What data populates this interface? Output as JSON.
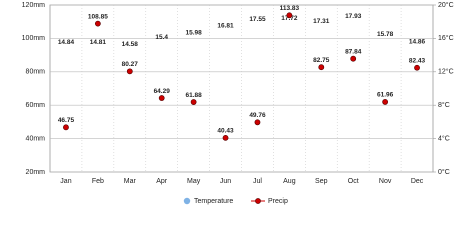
{
  "chart_data": {
    "type": "climate",
    "categories": [
      "Jan",
      "Feb",
      "Mar",
      "Apr",
      "May",
      "Jun",
      "Jul",
      "Aug",
      "Sep",
      "Oct",
      "Nov",
      "Dec"
    ],
    "series": [
      {
        "name": "Temperature",
        "color": "#7fb2e5",
        "axis": "y2",
        "values": [
          14.84,
          14.81,
          14.58,
          15.4,
          15.98,
          16.81,
          17.55,
          17.72,
          17.31,
          17.93,
          15.78,
          14.86
        ]
      },
      {
        "name": "Precip",
        "color": "#cc0000",
        "values": [
          46.75,
          108.85,
          80.27,
          64.29,
          61.88,
          40.43,
          49.76,
          113.83,
          82.75,
          87.84,
          61.96,
          82.43
        ]
      }
    ],
    "ylim": [
      20,
      120
    ],
    "yticks": [
      {
        "value": 20,
        "label": "20mm"
      },
      {
        "value": 40,
        "label": "40mm"
      },
      {
        "value": 60,
        "label": "60mm"
      },
      {
        "value": 80,
        "label": "80mm"
      },
      {
        "value": 100,
        "label": "100mm"
      },
      {
        "value": 120,
        "label": "120mm"
      }
    ],
    "y2lim": [
      0,
      20
    ],
    "y2ticks": [
      {
        "value": 0,
        "label": "0°C"
      },
      {
        "value": 4,
        "label": "4°C"
      },
      {
        "value": 8,
        "label": "8°C"
      },
      {
        "value": 12,
        "label": "12°C"
      },
      {
        "value": 16,
        "label": "16°C"
      },
      {
        "value": 20,
        "label": "20°C"
      }
    ],
    "grid": true
  }
}
